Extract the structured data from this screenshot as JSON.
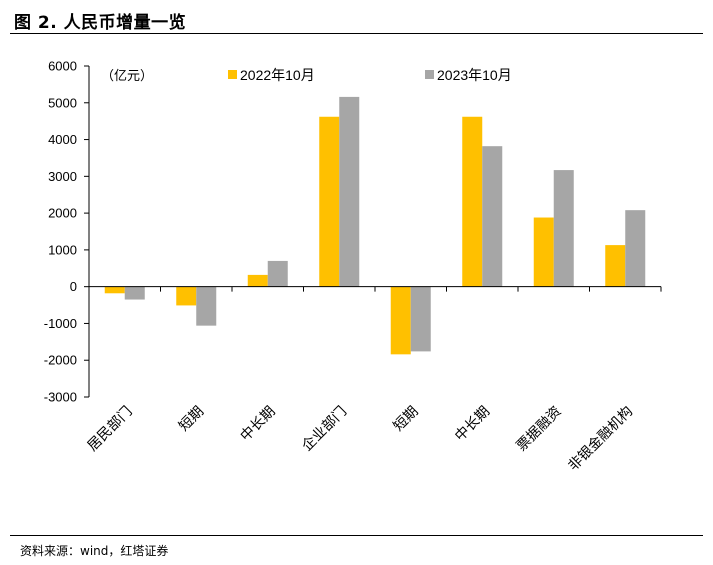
{
  "header": {
    "title": "图 2. 人民币增量一览"
  },
  "footer": {
    "source": "资料来源：wind，红塔证券"
  },
  "colors": {
    "series1": "#FFC000",
    "series2": "#A6A6A6",
    "axis": "#000000"
  },
  "chart_data": {
    "type": "bar",
    "title": "",
    "unit_label": "（亿元）",
    "xlabel": "",
    "ylabel": "",
    "ylim": [
      -3000,
      6000
    ],
    "yticks": [
      6000,
      5000,
      4000,
      3000,
      2000,
      1000,
      0,
      -1000,
      -2000,
      -3000
    ],
    "ytick_labels": [
      "6000",
      "5000",
      "4000",
      "3000",
      "2000",
      "1000",
      "0",
      "-1000",
      "-2000",
      "-3000"
    ],
    "categories": [
      "居民部门",
      "短期",
      "中长期",
      "企业部门",
      "短期",
      "中长期",
      "票据融资",
      "非银金融机构"
    ],
    "series": [
      {
        "name": "2022年10月",
        "values": [
          -180,
          -510,
          320,
          4620,
          -1840,
          4620,
          1880,
          1130
        ]
      },
      {
        "name": "2023年10月",
        "values": [
          -350,
          -1060,
          700,
          5160,
          -1760,
          3820,
          3170,
          2080
        ]
      }
    ],
    "legend_position": "top"
  }
}
